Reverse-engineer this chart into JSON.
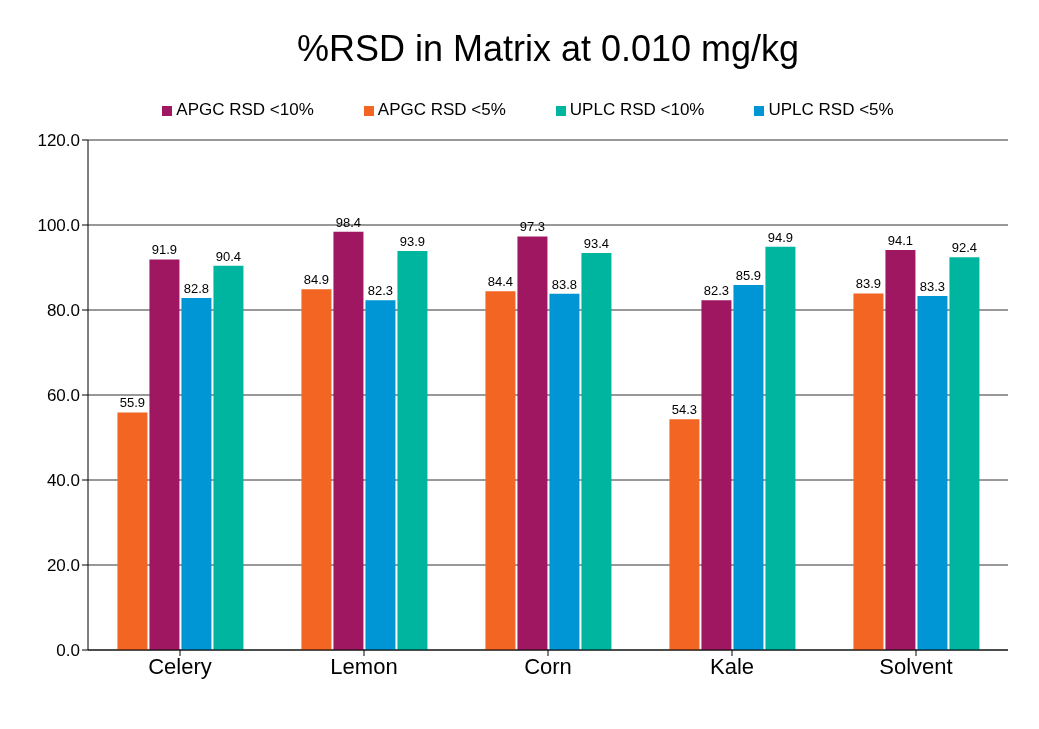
{
  "chart_data": {
    "type": "bar",
    "title": "%RSD in Matrix at 0.010 mg/kg",
    "categories": [
      "Celery",
      "Lemon",
      "Corn",
      "Kale",
      "Solvent"
    ],
    "series": [
      {
        "name": "APGC RSD <5%",
        "color": "#f26522",
        "values": [
          55.9,
          84.9,
          84.4,
          54.3,
          83.9
        ]
      },
      {
        "name": "APGC RSD <10%",
        "color": "#9e1760",
        "values": [
          91.9,
          98.4,
          97.3,
          82.3,
          94.1
        ]
      },
      {
        "name": "UPLC RSD <5%",
        "color": "#0096d6",
        "values": [
          82.8,
          82.3,
          83.8,
          85.9,
          83.3
        ]
      },
      {
        "name": "UPLC RSD <10%",
        "color": "#00b5a0",
        "values": [
          90.4,
          93.9,
          93.4,
          94.9,
          92.4
        ]
      }
    ],
    "ylim": [
      0,
      120
    ],
    "yticks": [
      {
        "value": 0,
        "label": "0.0"
      },
      {
        "value": 20,
        "label": "20.0"
      },
      {
        "value": 40,
        "label": "40.0"
      },
      {
        "value": 60,
        "label": "60.0"
      },
      {
        "value": 80,
        "label": "80.0"
      },
      {
        "value": 100,
        "label": "100.0"
      },
      {
        "value": 120,
        "label": "120.0"
      }
    ],
    "grid": "y",
    "legend": "top",
    "data_labels": true
  }
}
